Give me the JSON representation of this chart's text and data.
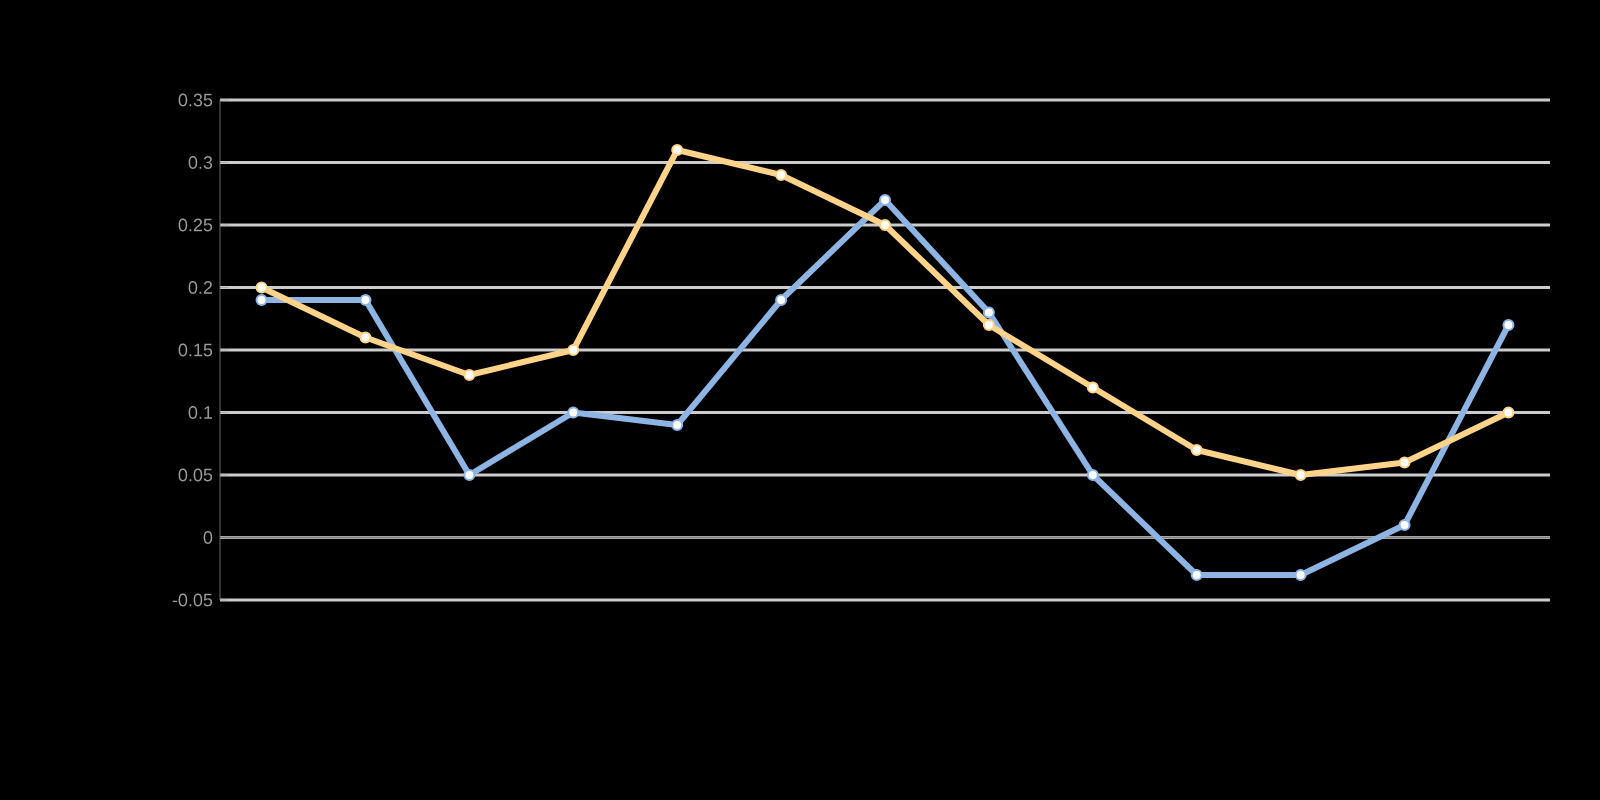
{
  "chart_data": {
    "type": "line",
    "categories": [
      null,
      null,
      null,
      null,
      null,
      null,
      null,
      null,
      null,
      null,
      null,
      null,
      null
    ],
    "series": [
      {
        "color": "#8eb4e3",
        "values": [
          0.19,
          0.19,
          0.05,
          0.1,
          0.09,
          0.19,
          0.27,
          0.18,
          0.05,
          -0.03,
          -0.03,
          0.01,
          0.17
        ]
      },
      {
        "color": "#ffd38a",
        "values": [
          0.2,
          0.16,
          0.13,
          0.15,
          0.31,
          0.29,
          0.25,
          0.17,
          0.12,
          0.07,
          0.05,
          0.06,
          0.1
        ]
      }
    ],
    "ylim": [
      -0.05,
      0.35
    ],
    "yticks": [
      -0.05,
      0,
      0.05,
      0.1,
      0.15,
      0.2,
      0.25,
      0.3,
      0.35
    ],
    "grid": "y",
    "marker": "circle",
    "line_style": "solid"
  }
}
